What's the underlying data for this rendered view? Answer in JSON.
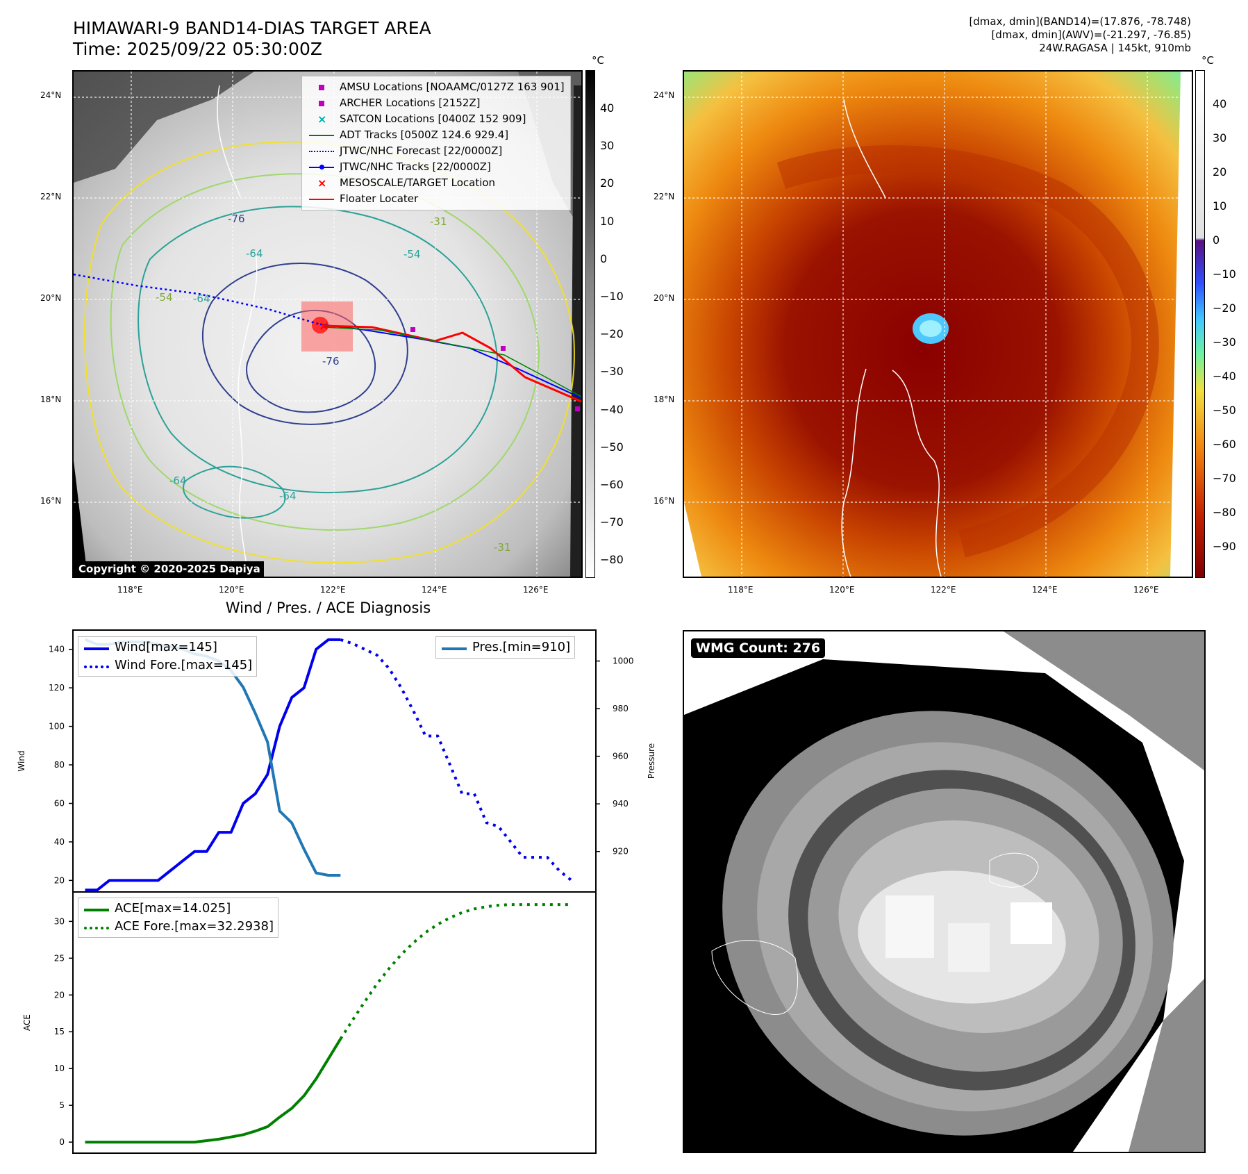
{
  "header": {
    "title_line1": "HIMAWARI-9 BAND14-DIAS TARGET AREA",
    "title_line2": "Time: 2025/09/22 05:30:00Z",
    "info_line1": "[dmax, dmin](BAND14)=(17.876, -78.748)",
    "info_line2": "[dmax, dmin](AWV)=(-21.297, -76.85)",
    "info_line3": "24W.RAGASA | 145kt, 910mb"
  },
  "map_panel": {
    "legend": [
      {
        "label": "AMSU Locations [NOAAMC/0127Z 163 901]",
        "symbol": "square",
        "color": "#c000c0"
      },
      {
        "label": "ARCHER Locations [2152Z]",
        "symbol": "square",
        "color": "#c000c0"
      },
      {
        "label": "SATCON Locations [0400Z 152 909]",
        "symbol": "x",
        "color": "#00b0b0"
      },
      {
        "label": "ADT Tracks [0500Z 124.6 929.4]",
        "symbol": "line",
        "color": "#008000"
      },
      {
        "label": "JTWC/NHC Forecast [22/0000Z]",
        "symbol": "dotted",
        "color": "#0000ff"
      },
      {
        "label": "JTWC/NHC Tracks [22/0000Z]",
        "symbol": "line-dot",
        "color": "#0000ff"
      },
      {
        "label": "MESOSCALE/TARGET Location",
        "symbol": "x",
        "color": "#ff0000"
      },
      {
        "label": "Floater Locater",
        "symbol": "line",
        "color": "#ff0000"
      }
    ],
    "lat_labels": [
      "24°N",
      "22°N",
      "20°N",
      "18°N",
      "16°N"
    ],
    "lon_labels": [
      "118°E",
      "120°E",
      "122°E",
      "124°E",
      "126°E"
    ],
    "contour_labels": [
      "-76",
      "-64",
      "-54",
      "-31",
      "-76",
      "-64",
      "-64",
      "-54",
      "-64",
      "-31"
    ],
    "copyright": "Copyright © 2020-2025 Dapiya"
  },
  "colorbar_gray": {
    "unit": "°C",
    "ticks": [
      "40",
      "30",
      "20",
      "10",
      "0",
      "−10",
      "−20",
      "−30",
      "−40",
      "−50",
      "−60",
      "−70",
      "−80"
    ]
  },
  "colorbar_color": {
    "unit": "°C",
    "ticks": [
      "40",
      "30",
      "20",
      "10",
      "0",
      "−10",
      "−20",
      "−30",
      "−40",
      "−50",
      "−60",
      "−70",
      "−80",
      "−90"
    ]
  },
  "enhanced_panel": {
    "lat_labels": [
      "24°N",
      "22°N",
      "20°N",
      "18°N",
      "16°N"
    ],
    "lon_labels": [
      "118°E",
      "120°E",
      "122°E",
      "124°E",
      "126°E"
    ]
  },
  "wmg_panel": {
    "badge": "WMG Count: 276"
  },
  "chart_data": [
    {
      "type": "line",
      "title": "Wind / Pres. / ACE Diagnosis",
      "ylabel": "Wind",
      "ylabel_right": "Pressure",
      "ylim": [
        14,
        150
      ],
      "ylim_right": [
        903,
        1013
      ],
      "xlim": [
        -1,
        42
      ],
      "yticks": [
        "20",
        "40",
        "60",
        "80",
        "100",
        "120",
        "140"
      ],
      "yticks_right": [
        "920",
        "940",
        "960",
        "980",
        "1000"
      ],
      "series": [
        {
          "name": "Wind[max=145]",
          "style": "solid",
          "color": "#0000ee",
          "x": [
            0,
            1,
            2,
            3,
            4,
            5,
            6,
            7,
            8,
            9,
            10,
            11,
            12,
            13,
            14,
            15,
            16,
            17,
            18,
            19,
            20,
            21
          ],
          "values": [
            15,
            15,
            20,
            20,
            20,
            20,
            20,
            25,
            30,
            35,
            35,
            45,
            45,
            60,
            65,
            75,
            100,
            115,
            120,
            140,
            145,
            145
          ]
        },
        {
          "name": "Wind Fore.[max=145]",
          "style": "dotted",
          "color": "#0000ee",
          "x": [
            21,
            22,
            23,
            24,
            25,
            26,
            27,
            28,
            29,
            30,
            31,
            32,
            33,
            34,
            35,
            36,
            37,
            38,
            39,
            40
          ],
          "values": [
            145,
            143,
            140,
            137,
            130,
            120,
            108,
            95,
            95,
            80,
            65,
            65,
            50,
            48,
            40,
            32,
            32,
            32,
            25,
            20
          ]
        },
        {
          "name": "Pres.[min=910]",
          "style": "solid",
          "color": "#1f77b4",
          "axis": "right",
          "x": [
            0,
            1,
            2,
            3,
            4,
            5,
            6,
            7,
            8,
            9,
            10,
            11,
            12,
            13,
            14,
            15,
            16,
            17,
            18,
            19,
            20,
            21
          ],
          "values": [
            1009,
            1007,
            1007,
            1008,
            1008,
            1008,
            1007,
            1006,
            1005,
            1003,
            1002,
            1000,
            996,
            989,
            978,
            966,
            937,
            932,
            921,
            911,
            910,
            910
          ]
        }
      ]
    },
    {
      "type": "line",
      "ylabel": "ACE",
      "ylim": [
        -1.5,
        34
      ],
      "xlim": [
        -1,
        42
      ],
      "yticks": [
        "0",
        "5",
        "10",
        "15",
        "20",
        "25",
        "30"
      ],
      "series": [
        {
          "name": "ACE[max=14.025]",
          "style": "solid",
          "color": "#008000",
          "x": [
            0,
            1,
            2,
            3,
            4,
            5,
            6,
            7,
            8,
            9,
            10,
            11,
            12,
            13,
            14,
            15,
            16,
            17,
            18,
            19,
            20,
            21
          ],
          "values": [
            0,
            0,
            0,
            0,
            0,
            0,
            0,
            0,
            0,
            0,
            0.2,
            0.4,
            0.7,
            1.0,
            1.5,
            2.1,
            3.4,
            4.6,
            6.3,
            8.6,
            11.3,
            14.025
          ]
        },
        {
          "name": "ACE Fore.[max=32.2938]",
          "style": "dotted",
          "color": "#008000",
          "x": [
            21,
            22,
            23,
            24,
            25,
            26,
            27,
            28,
            29,
            30,
            31,
            32,
            33,
            34,
            35,
            36,
            37,
            38,
            39,
            40
          ],
          "values": [
            14.025,
            16.6,
            19.1,
            21.5,
            23.6,
            25.5,
            27.1,
            28.5,
            29.6,
            30.5,
            31.2,
            31.7,
            32.0,
            32.2,
            32.29,
            32.29,
            32.29,
            32.29,
            32.29,
            32.29
          ]
        }
      ]
    }
  ]
}
